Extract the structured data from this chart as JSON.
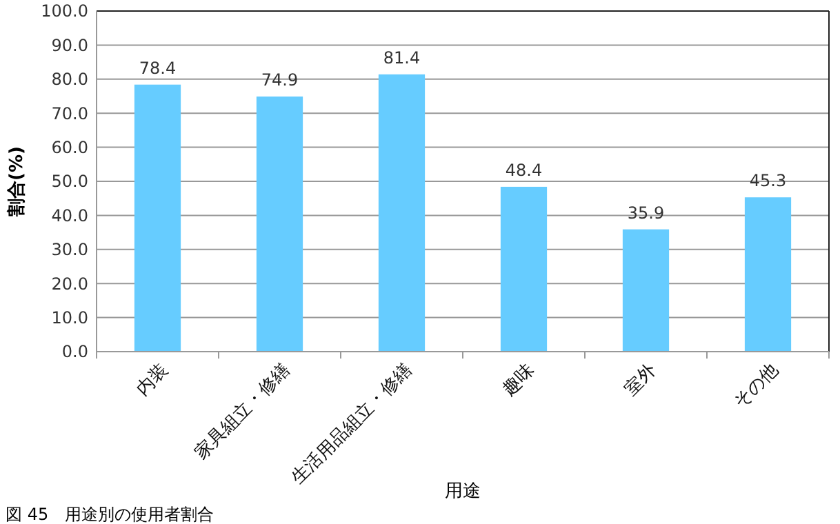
{
  "chart_data": {
    "type": "bar",
    "xlabel": "用途",
    "ylabel": "割合(%)",
    "categories": [
      "内装",
      "家具組立・修繕",
      "生活用品組立・修繕",
      "趣味",
      "室外",
      "その他"
    ],
    "values": [
      78.4,
      74.9,
      81.4,
      48.4,
      35.9,
      45.3
    ],
    "color": "#66ccff",
    "data_labels": true,
    "ylim": [
      0,
      100
    ],
    "yticks": [
      {
        "value": 0,
        "label": "0.0"
      },
      {
        "value": 10,
        "label": "10.0"
      },
      {
        "value": 20,
        "label": "20.0"
      },
      {
        "value": 30,
        "label": "30.0"
      },
      {
        "value": 40,
        "label": "40.0"
      },
      {
        "value": 50,
        "label": "50.0"
      },
      {
        "value": 60,
        "label": "60.0"
      },
      {
        "value": 70,
        "label": "70.0"
      },
      {
        "value": 80,
        "label": "80.0"
      },
      {
        "value": 90,
        "label": "90.0"
      },
      {
        "value": 100,
        "label": "100.0"
      }
    ],
    "grid": "y",
    "annotations": [
      "図 45　用途別の使用者割合"
    ]
  }
}
